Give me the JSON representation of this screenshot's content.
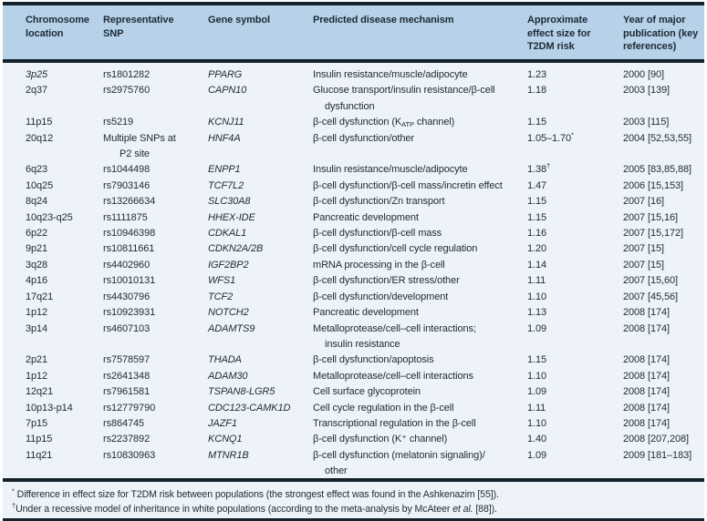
{
  "colors": {
    "header_bg": "#b7d1e8",
    "body_bg": "#edf3f9",
    "rule": "#14202b",
    "text": "#1d2a36"
  },
  "table": {
    "columns": [
      {
        "label": "Chromosome location"
      },
      {
        "label": "Representative SNP"
      },
      {
        "label": "Gene symbol"
      },
      {
        "label": "Predicted disease mechanism"
      },
      {
        "label": "Approximate effect size for T2DM risk"
      },
      {
        "label": "Year of major publication (key references)"
      }
    ],
    "rows": [
      {
        "location": "3p25",
        "location_italic": true,
        "snp": "rs1801282",
        "gene": "PPARG",
        "mechanism": "Insulin resistance/muscle/adipocyte",
        "effect_size": "1.23",
        "year": "2000 [90]"
      },
      {
        "location": "2q37",
        "snp": "rs2975760",
        "gene": "CAPN10",
        "mechanism": "Glucose transport/insulin resistance/β-cell<br>dysfunction",
        "effect_size": "1.18",
        "year": "2003 [139]"
      },
      {
        "location": "11p15",
        "snp": "rs5219",
        "gene": "KCNJ11",
        "mechanism": "β-cell dysfunction (K<sub>ATP</sub> channel)",
        "effect_size": "1.15",
        "year": "2003 [115]"
      },
      {
        "location": "20q12",
        "snp": "Multiple SNPs at<br>P2 site",
        "gene": "HNF4A",
        "mechanism": "β-cell dysfunction/other",
        "effect_size": "1.05–1.70<sup>*</sup>",
        "year": "2004 [52,53,55]"
      },
      {
        "location": "6q23",
        "snp": "rs1044498",
        "gene": "ENPP1",
        "mechanism": "Insulin resistance/muscle/adipocyte",
        "effect_size": "1.38<sup>†</sup>",
        "year": "2005 [83,85,88]"
      },
      {
        "location": "10q25",
        "snp": "rs7903146",
        "gene": "TCF7L2",
        "mechanism": "β-cell dysfunction/β-cell mass/incretin effect",
        "effect_size": "1.47",
        "year": "2006 [15,153]"
      },
      {
        "location": "8q24",
        "snp": "rs13266634",
        "gene": "SLC30A8",
        "mechanism": "β-cell dysfunction/Zn transport",
        "effect_size": "1.15",
        "year": "2007 [16]"
      },
      {
        "location": "10q23-q25",
        "snp": "rs1111875",
        "gene": "HHEX-IDE",
        "mechanism": "Pancreatic development",
        "effect_size": "1.15",
        "year": "2007 [15,16]"
      },
      {
        "location": "6p22",
        "snp": "rs10946398",
        "gene": "CDKAL1",
        "mechanism": "β-cell dysfunction/β-cell mass",
        "effect_size": "1.16",
        "year": "2007 [15,172]"
      },
      {
        "location": "9p21",
        "snp": "rs10811661",
        "gene": "CDKN2A/2B",
        "mechanism": "β-cell dysfunction/cell cycle regulation",
        "effect_size": "1.20",
        "year": "2007 [15]"
      },
      {
        "location": "3q28",
        "snp": "rs4402960",
        "gene": "IGF2BP2",
        "mechanism": "mRNA processing in the β-cell",
        "effect_size": "1.14",
        "year": "2007 [15]"
      },
      {
        "location": "4p16",
        "snp": "rs10010131",
        "gene": "WFS1",
        "mechanism": "β-cell dysfunction/ER stress/other",
        "effect_size": "1.11",
        "year": "2007 [15,60]"
      },
      {
        "location": "17q21",
        "snp": "rs4430796",
        "gene": "TCF2",
        "mechanism": "β-cell dysfunction/development",
        "effect_size": "1.10",
        "year": "2007 [45,56]"
      },
      {
        "location": "1p12",
        "snp": "rs10923931",
        "gene": "NOTCH2",
        "mechanism": "Pancreatic development",
        "effect_size": "1.13",
        "year": "2008 [174]"
      },
      {
        "location": "3p14",
        "snp": "rs4607103",
        "gene": "ADAMTS9",
        "mechanism": "Metalloprotease/cell–cell interactions;<br>insulin resistance",
        "effect_size": "1.09",
        "year": "2008 [174]"
      },
      {
        "location": "2p21",
        "snp": "rs7578597",
        "gene": "THADA",
        "mechanism": "β-cell dysfunction/apoptosis",
        "effect_size": "1.15",
        "year": "2008 [174]"
      },
      {
        "location": "1p12",
        "snp": "rs2641348",
        "gene": "ADAM30",
        "mechanism": "Metalloprotease/cell–cell interactions",
        "effect_size": "1.10",
        "year": "2008 [174]"
      },
      {
        "location": "12q21",
        "snp": "rs7961581",
        "gene": "TSPAN8-LGR5",
        "mechanism": "Cell surface glycoprotein",
        "effect_size": "1.09",
        "year": "2008 [174]"
      },
      {
        "location": "10p13-p14",
        "snp": "rs12779790",
        "gene": "CDC123-CAMK1D",
        "mechanism": "Cell cycle regulation in the β-cell",
        "effect_size": "1.11",
        "year": "2008 [174]"
      },
      {
        "location": "7p15",
        "snp": "rs864745",
        "gene": "JAZF1",
        "mechanism": "Transcriptional regulation in the β-cell",
        "effect_size": "1.10",
        "year": "2008 [174]"
      },
      {
        "location": "11p15",
        "snp": "rs2237892",
        "gene": "KCNQ1",
        "mechanism": "β-cell dysfunction (K⁺ channel)",
        "effect_size": "1.40",
        "year": "2008 [207,208]"
      },
      {
        "location": "11q21",
        "snp": "rs10830963",
        "gene": "MTNR1B",
        "mechanism": "β-cell dysfunction (melatonin signaling)/<br>other",
        "effect_size": "1.09",
        "year": "2009 [181–183]"
      }
    ],
    "footnotes": [
      "<sup>*</sup> Difference in effect size for T2DM risk between populations (the strongest effect was found in the Ashkenazim [55]).",
      "<sup>†</sup>Under a recessive model of inheritance in white populations (according to the meta-analysis by McAteer <i>et al.</i> [88])."
    ]
  }
}
